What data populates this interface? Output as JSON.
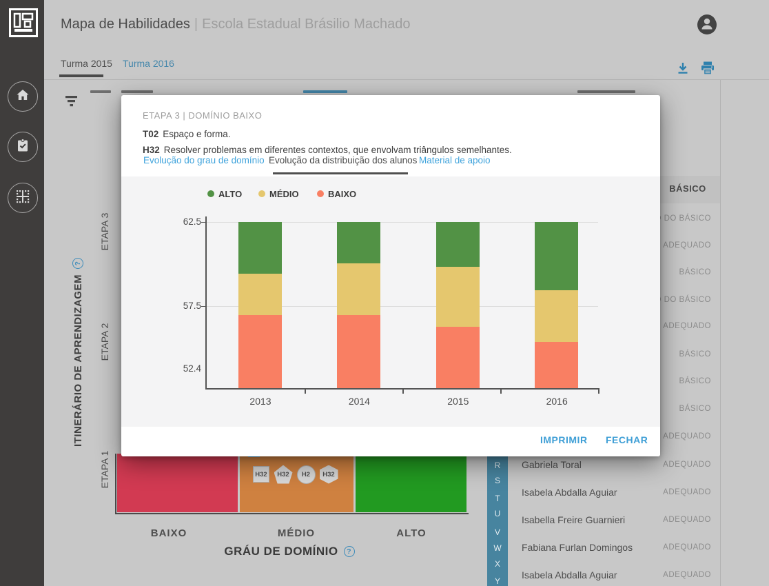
{
  "app": {
    "title": "Mapa de Habilidades",
    "separator": "|",
    "subtitle": "Escola Estadual Brásilio Machado"
  },
  "header_tabs": [
    {
      "label": "Turma 2015",
      "active": true
    },
    {
      "label": "Turma 2016",
      "active": false
    }
  ],
  "background": {
    "left_chart": {
      "y_axis_label": "ITINERÁRIO DE APRENDIZAGEM",
      "row_labels": [
        "ETAPA 3",
        "ETAPA 2",
        "ETAPA 1"
      ],
      "x_labels": [
        "BAIXO",
        "MÉDIO",
        "ALTO"
      ],
      "x_axis_title": "GRÁU DE DOMÍNIO",
      "cell_colors": {
        "baixo": "#d23a52",
        "medio": "#cf8140",
        "alto": "#229a21"
      },
      "badges": [
        {
          "shape": "square",
          "label": "H32"
        },
        {
          "shape": "pentagon",
          "label": "H32"
        },
        {
          "shape": "circle",
          "label": "H2"
        },
        {
          "shape": "hexagon",
          "label": "H32"
        }
      ]
    },
    "student_table": {
      "header_label": "BÁSICO",
      "alphabet_index": [
        "R",
        "S",
        "T",
        "U",
        "V",
        "W",
        "X",
        "Y"
      ],
      "partial_statuses": [
        "ABAIXO DO BÁSICO",
        "ADEQUADO",
        "BÁSICO",
        "ABAIXO DO BÁSICO",
        "ADEQUADO",
        "BÁSICO",
        "BÁSICO",
        "BÁSICO",
        "ADEQUADO"
      ],
      "rows": [
        {
          "name": "Gabriela Toral",
          "status": "ADEQUADO"
        },
        {
          "name": "Isabela Abdalla Aguiar",
          "status": "ADEQUADO"
        },
        {
          "name": "Isabella Freire Guarnieri",
          "status": "ADEQUADO"
        },
        {
          "name": "Fabiana Furlan Domingos",
          "status": "ADEQUADO"
        },
        {
          "name": "Isabela Abdalla Aguiar",
          "status": "ADEQUADO"
        }
      ]
    }
  },
  "modal": {
    "kicker": "ETAPA 3 | DOMÍNIO BAIXO",
    "topic_code": "T02",
    "topic_text": "Espaço e forma.",
    "skill_code": "H32",
    "skill_text": "Resolver problemas em diferentes contextos, que envolvam triângulos semelhantes.",
    "tabs": [
      {
        "label": "Evolução do grau de domínio",
        "active": false
      },
      {
        "label": "Evolução da distribuição dos alunos",
        "active": true
      },
      {
        "label": "Material de apoio",
        "active": false
      }
    ],
    "buttons": {
      "print": "IMPRIMIR",
      "close": "FECHAR"
    },
    "accent_color": "#3f9fd6"
  },
  "chart_data": {
    "type": "bar",
    "stacked": true,
    "title": "",
    "categories": [
      "2013",
      "2014",
      "2015",
      "2016"
    ],
    "series": [
      {
        "name": "BAIXO",
        "color": "#f97f63",
        "cumulative_tops": [
          56.9,
          56.9,
          56.2,
          55.3
        ]
      },
      {
        "name": "MÉDIO",
        "color": "#e5c76e",
        "cumulative_tops": [
          59.4,
          60.0,
          59.8,
          58.4
        ]
      },
      {
        "name": "ALTO",
        "color": "#529245",
        "cumulative_tops": [
          62.5,
          62.5,
          62.5,
          62.5
        ]
      }
    ],
    "baseline_value": 52.5,
    "ylim": [
      52.5,
      62.5
    ],
    "yticks": [
      "62.5",
      "57.5",
      "52.4"
    ],
    "legend": [
      "ALTO",
      "MÉDIO",
      "BAIXO"
    ],
    "legend_position": "top",
    "grid": true
  }
}
